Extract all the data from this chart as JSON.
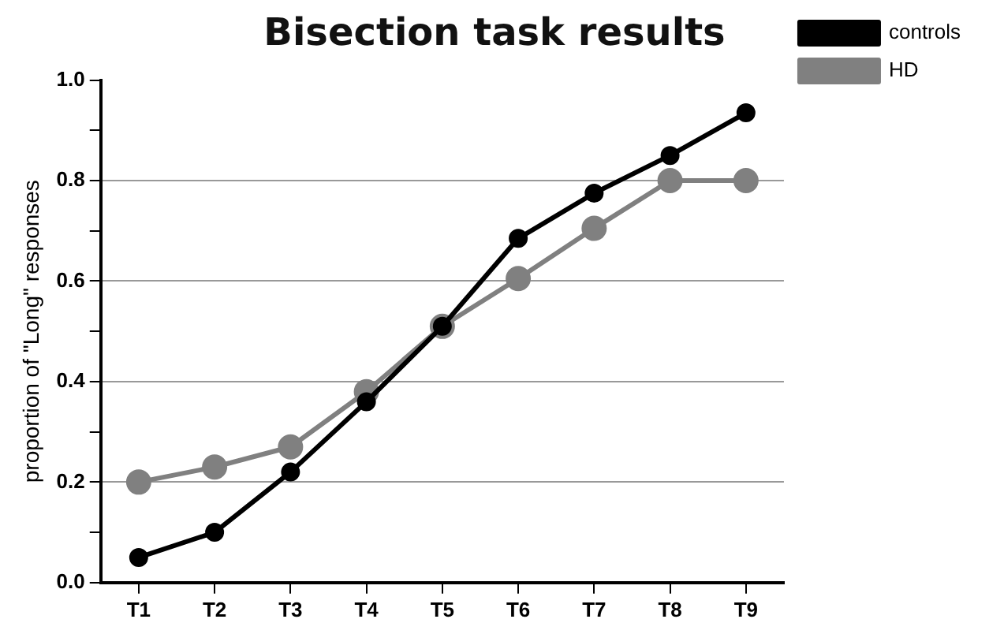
{
  "chart_data": {
    "type": "line",
    "title": "Bisection task results",
    "ylabel": "proportion of \"Long\" responses",
    "categories": [
      "T1",
      "T2",
      "T3",
      "T4",
      "T5",
      "T6",
      "T7",
      "T8",
      "T9"
    ],
    "series": [
      {
        "name": "controls",
        "color": "#000000",
        "values": [
          0.05,
          0.1,
          0.22,
          0.36,
          0.51,
          0.685,
          0.775,
          0.85,
          0.935
        ]
      },
      {
        "name": "HD",
        "color": "#808080",
        "values": [
          0.2,
          0.23,
          0.27,
          0.38,
          0.51,
          0.605,
          0.705,
          0.8,
          0.8
        ]
      }
    ],
    "ylim": [
      0,
      1
    ],
    "yticks": [
      {
        "value": 0,
        "label": "0.0"
      },
      {
        "value": 0.1,
        "label": null
      },
      {
        "value": 0.2,
        "label": "0.2"
      },
      {
        "value": 0.3,
        "label": null
      },
      {
        "value": 0.4,
        "label": "0.4"
      },
      {
        "value": 0.5,
        "label": null
      },
      {
        "value": 0.6,
        "label": "0.6"
      },
      {
        "value": 0.7,
        "label": null
      },
      {
        "value": 0.8,
        "label": "0.8"
      },
      {
        "value": 0.9,
        "label": null
      },
      {
        "value": 1,
        "label": "1.0"
      }
    ],
    "grid": "y",
    "legend": "top right",
    "marker": "circle",
    "line_style": "solid"
  }
}
